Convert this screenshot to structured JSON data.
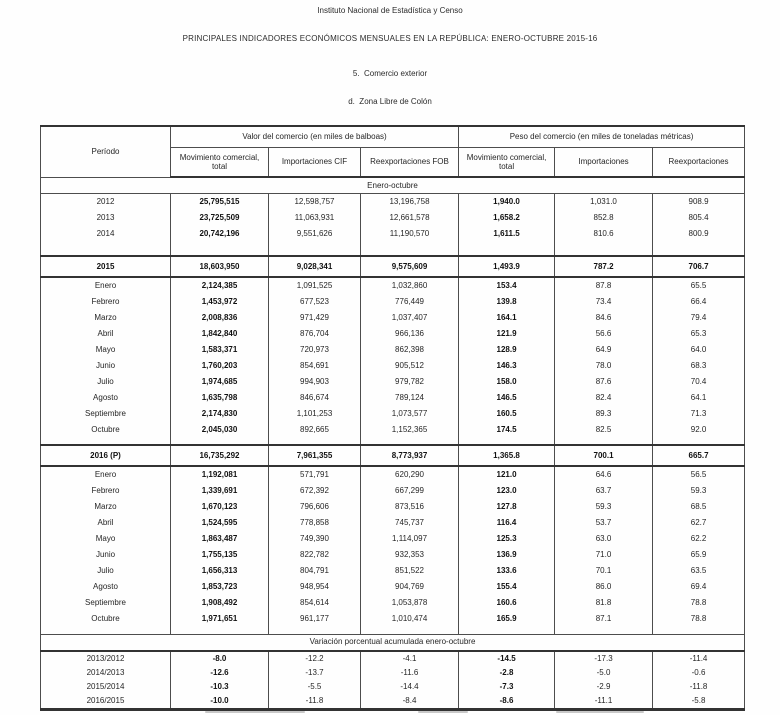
{
  "page": {
    "institution": "Instituto Nacional de Estadística y Censo",
    "title": "PRINCIPALES INDICADORES ECONÓMICOS MENSUALES EN LA REPÚBLICA: ENERO-OCTUBRE 2015-16",
    "section": "5.  Comercio exterior",
    "subsection": "d.  Zona Libre de Colón"
  },
  "colors": {
    "text": "#2b2b2b",
    "rule": "#4d4d4d",
    "background": "#fefefe"
  },
  "table": {
    "period_header": "Período",
    "group_value": "Valor del comercio (en miles de balboas)",
    "group_weight": "Peso del comercio (en miles de toneladas métricas)",
    "columns": [
      "Movimiento comercial,\ntotal",
      "Importaciones CIF",
      "Reexportaciones FOB",
      "Movimiento comercial,\ntotal",
      "Importaciones",
      "Reexportaciones"
    ],
    "rows": [
      {
        "t": "band1",
        "label": "Enero-octubre"
      },
      {
        "t": "r",
        "p": "2012",
        "v": [
          "25,795,515",
          "12,598,757",
          "13,196,758",
          "1,940.0",
          "1,031.0",
          "908.9"
        ]
      },
      {
        "t": "r",
        "p": "2013",
        "v": [
          "23,725,509",
          "11,063,931",
          "12,661,578",
          "1,658.2",
          "852.8",
          "805.4"
        ]
      },
      {
        "t": "r",
        "p": "2014",
        "v": [
          "20,742,196",
          "9,551,626",
          "11,190,570",
          "1,611.5",
          "810.6",
          "800.9"
        ]
      },
      {
        "t": "gap",
        "h": 14
      },
      {
        "t": "sum",
        "p": "2015",
        "v": [
          "18,603,950",
          "9,028,341",
          "9,575,609",
          "1,493.9",
          "787.2",
          "706.7"
        ]
      },
      {
        "t": "r",
        "p": "Enero",
        "v": [
          "2,124,385",
          "1,091,525",
          "1,032,860",
          "153.4",
          "87.8",
          "65.5"
        ]
      },
      {
        "t": "r",
        "p": "Febrero",
        "v": [
          "1,453,972",
          "677,523",
          "776,449",
          "139.8",
          "73.4",
          "66.4"
        ]
      },
      {
        "t": "r",
        "p": "Marzo",
        "v": [
          "2,008,836",
          "971,429",
          "1,037,407",
          "164.1",
          "84.6",
          "79.4"
        ]
      },
      {
        "t": "r",
        "p": "Abril",
        "v": [
          "1,842,840",
          "876,704",
          "966,136",
          "121.9",
          "56.6",
          "65.3"
        ]
      },
      {
        "t": "r",
        "p": "Mayo",
        "v": [
          "1,583,371",
          "720,973",
          "862,398",
          "128.9",
          "64.9",
          "64.0"
        ]
      },
      {
        "t": "r",
        "p": "Junio",
        "v": [
          "1,760,203",
          "854,691",
          "905,512",
          "146.3",
          "78.0",
          "68.3"
        ]
      },
      {
        "t": "r",
        "p": "Julio",
        "v": [
          "1,974,685",
          "994,903",
          "979,782",
          "158.0",
          "87.6",
          "70.4"
        ]
      },
      {
        "t": "r",
        "p": "Agosto",
        "v": [
          "1,635,798",
          "846,674",
          "789,124",
          "146.5",
          "82.4",
          "64.1"
        ]
      },
      {
        "t": "r",
        "p": "Septiembre",
        "v": [
          "2,174,830",
          "1,101,253",
          "1,073,577",
          "160.5",
          "89.3",
          "71.3"
        ]
      },
      {
        "t": "r",
        "p": "Octubre",
        "v": [
          "2,045,030",
          "892,665",
          "1,152,365",
          "174.5",
          "82.5",
          "92.0"
        ]
      },
      {
        "t": "gap",
        "h": 7
      },
      {
        "t": "sum",
        "p": "2016 (P)",
        "v": [
          "16,735,292",
          "7,961,355",
          "8,773,937",
          "1,365.8",
          "700.1",
          "665.7"
        ]
      },
      {
        "t": "r",
        "p": "Enero",
        "v": [
          "1,192,081",
          "571,791",
          "620,290",
          "121.0",
          "64.6",
          "56.5"
        ]
      },
      {
        "t": "r",
        "p": "Febrero",
        "v": [
          "1,339,691",
          "672,392",
          "667,299",
          "123.0",
          "63.7",
          "59.3"
        ]
      },
      {
        "t": "r",
        "p": "Marzo",
        "v": [
          "1,670,123",
          "796,606",
          "873,516",
          "127.8",
          "59.3",
          "68.5"
        ]
      },
      {
        "t": "r",
        "p": "Abril",
        "v": [
          "1,524,595",
          "778,858",
          "745,737",
          "116.4",
          "53.7",
          "62.7"
        ]
      },
      {
        "t": "r",
        "p": "Mayo",
        "v": [
          "1,863,487",
          "749,390",
          "1,114,097",
          "125.3",
          "63.0",
          "62.2"
        ]
      },
      {
        "t": "r",
        "p": "Junio",
        "v": [
          "1,755,135",
          "822,782",
          "932,353",
          "136.9",
          "71.0",
          "65.9"
        ]
      },
      {
        "t": "r",
        "p": "Julio",
        "v": [
          "1,656,313",
          "804,791",
          "851,522",
          "133.6",
          "70.1",
          "63.5"
        ]
      },
      {
        "t": "r",
        "p": "Agosto",
        "v": [
          "1,853,723",
          "948,954",
          "904,769",
          "155.4",
          "86.0",
          "69.4"
        ]
      },
      {
        "t": "r",
        "p": "Septiembre",
        "v": [
          "1,908,492",
          "854,614",
          "1,053,878",
          "160.6",
          "81.8",
          "78.8"
        ]
      },
      {
        "t": "r",
        "p": "Octubre",
        "v": [
          "1,971,651",
          "961,177",
          "1,010,474",
          "165.9",
          "87.1",
          "78.8"
        ]
      },
      {
        "t": "gap",
        "h": 7
      },
      {
        "t": "band2",
        "label": "Variación porcentual acumulada enero-octubre"
      },
      {
        "t": "var",
        "p": "2013/2012",
        "v": [
          "-8.0",
          "-12.2",
          "-4.1",
          "-14.5",
          "-17.3",
          "-11.4"
        ]
      },
      {
        "t": "var",
        "p": "2014/2013",
        "v": [
          "-12.6",
          "-13.7",
          "-11.6",
          "-2.8",
          "-5.0",
          "-0.6"
        ]
      },
      {
        "t": "var",
        "p": "2015/2014",
        "v": [
          "-10.3",
          "-5.5",
          "-14.4",
          "-7.3",
          "-2.9",
          "-11.8"
        ]
      },
      {
        "t": "var",
        "p": "2016/2015",
        "v": [
          "-10.0",
          "-11.8",
          "-8.4",
          "-8.6",
          "-11.1",
          "-5.8"
        ]
      }
    ]
  }
}
